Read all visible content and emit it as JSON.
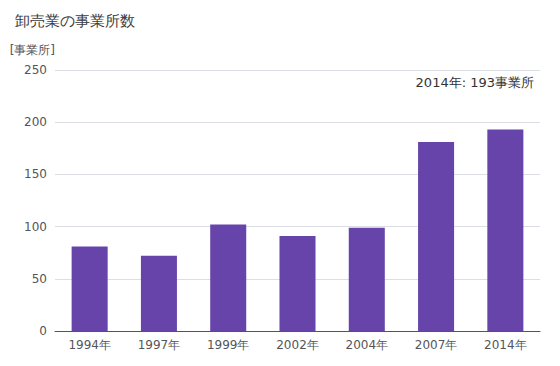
{
  "chart_data": {
    "type": "bar",
    "title": "卸売業の事業所数",
    "ylabel": "[事業所]",
    "annotation": "2014年: 193事業所",
    "categories": [
      "1994年",
      "1997年",
      "1999年",
      "2002年",
      "2004年",
      "2007年",
      "2014年"
    ],
    "values": [
      81,
      72,
      102,
      91,
      99,
      181,
      193
    ],
    "color": "#6644aa",
    "ylim": [
      0,
      250
    ],
    "yticks": [
      0,
      50,
      100,
      150,
      200,
      250
    ],
    "grid": true
  }
}
